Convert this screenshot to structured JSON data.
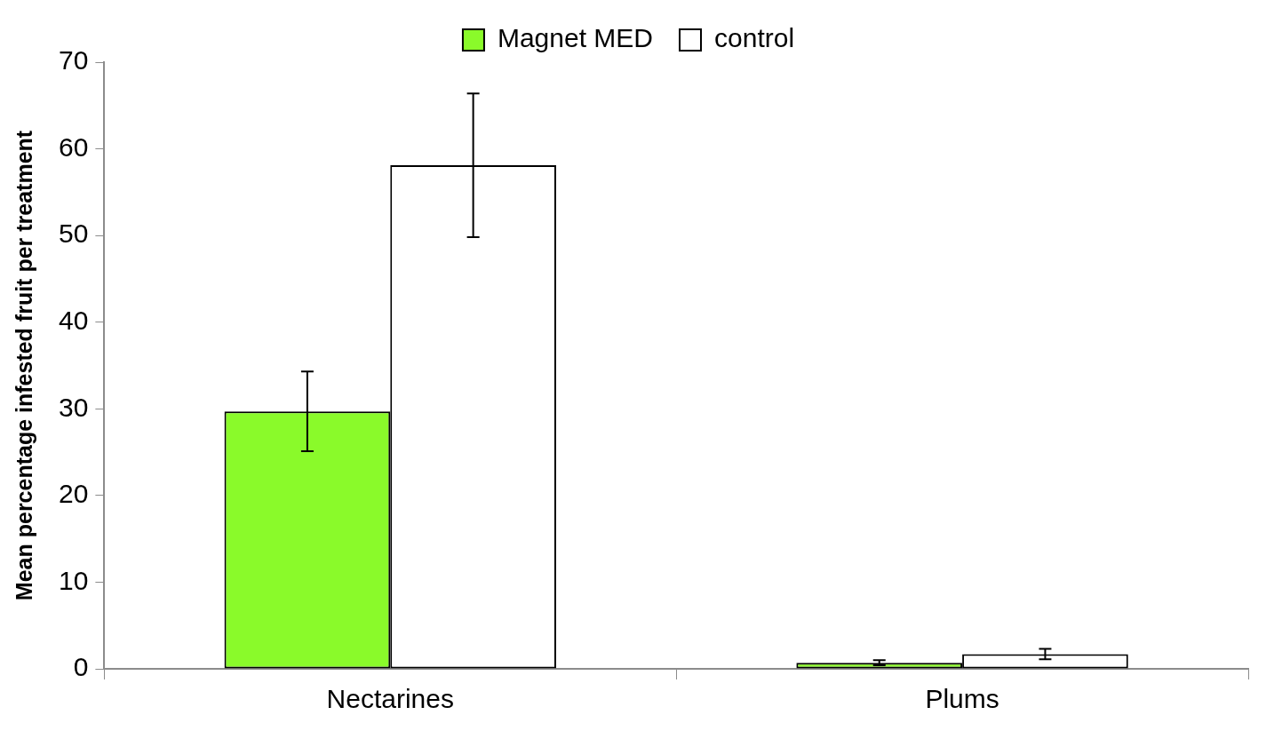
{
  "chart_data": {
    "type": "bar",
    "categories": [
      "Nectarines",
      "Plums"
    ],
    "series": [
      {
        "name": "Magnet MED",
        "color": "#8afa2a",
        "values": [
          29.7,
          0.7
        ],
        "errors": [
          4.6,
          0.3
        ]
      },
      {
        "name": "control",
        "color": "#ffffff",
        "values": [
          58.1,
          1.7
        ],
        "errors": [
          8.3,
          0.6
        ]
      }
    ],
    "y_label": "Mean percentage infested fruit per treatment",
    "ylim": [
      0,
      70
    ],
    "yticks": [
      0,
      10,
      20,
      30,
      40,
      50,
      60,
      70
    ],
    "grid": false,
    "legend": "top"
  }
}
